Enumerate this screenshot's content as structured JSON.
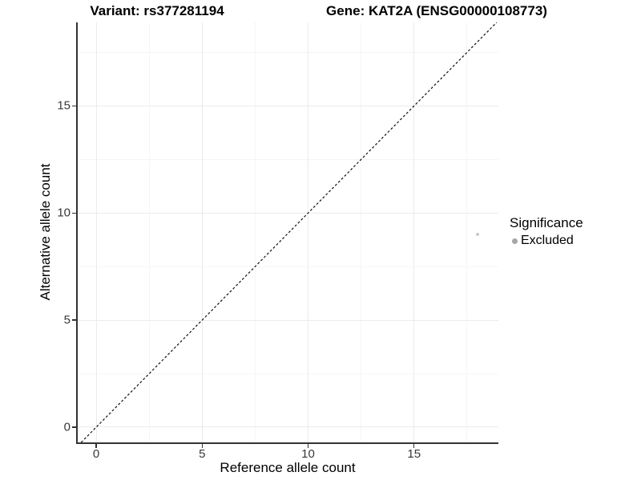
{
  "titles": {
    "variant": "Variant: rs377281194",
    "gene": "Gene: KAT2A (ENSG00000108773)"
  },
  "legend": {
    "title": "Significance",
    "items": [
      {
        "label": "Excluded",
        "color": "#a6a6a6"
      }
    ]
  },
  "chart_data": {
    "type": "scatter",
    "xlabel": "Reference allele count",
    "ylabel": "Alternative allele count",
    "xlim": [
      -0.91,
      18.98
    ],
    "ylim": [
      -0.71,
      18.9
    ],
    "x_ticks": [
      0,
      5,
      10,
      15
    ],
    "y_ticks": [
      0,
      5,
      10,
      15
    ],
    "x_minor_ticks": [
      2.5,
      7.5,
      12.5,
      17.5
    ],
    "y_minor_ticks": [
      2.5,
      7.5,
      12.5,
      17.5
    ],
    "grid": true,
    "legend_position": "right",
    "reference_line": {
      "slope": 1,
      "intercept": 0,
      "style": "dashed",
      "color": "#111111",
      "width": 1.2
    },
    "series": [
      {
        "name": "Excluded",
        "color": "#c9c9c9",
        "point_radius": 2,
        "points": [
          {
            "x": 18,
            "y": 9
          }
        ]
      }
    ]
  },
  "colors": {
    "background": "#ffffff",
    "grid_major": "#ebebeb",
    "grid_minor": "#f5f5f5",
    "axis_line": "#333333",
    "tick_label": "#383838"
  }
}
